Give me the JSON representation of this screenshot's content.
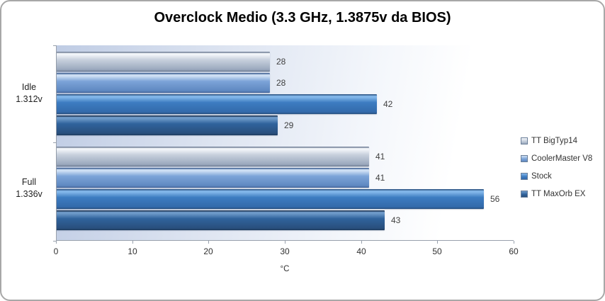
{
  "frame": {
    "background": "#ffffff",
    "border_color": "#a8a8a8"
  },
  "title": "Overclock Medio (3.3 GHz, 1.3875v da BIOS)",
  "chart_data": {
    "type": "bar",
    "orientation": "horizontal",
    "title": "Overclock Medio (3.3 GHz, 1.3875v da BIOS)",
    "xlabel": "°C",
    "xlim": [
      0,
      60
    ],
    "xticks": [
      0,
      10,
      20,
      30,
      40,
      50,
      60
    ],
    "grid": false,
    "data_labels": true,
    "legend_position": "right",
    "axis_color": "#98a0ac",
    "plot_background_gradient": [
      "#bfcce4",
      "#dde4f1",
      "#f3f6fb",
      "#ffffff"
    ],
    "categories": [
      {
        "line1": "Idle",
        "line2": "1.312v"
      },
      {
        "line1": "Full",
        "line2": "1.336v"
      }
    ],
    "series": [
      {
        "name": "TT BigTyp14",
        "values": [
          28,
          41
        ],
        "colors": {
          "edge": "#7d8aa0",
          "hi": "#f2f5f9",
          "mid": "#c6cfdc",
          "lo": "#9aa8bd",
          "dark": "#6e7c93"
        }
      },
      {
        "name": "CoolerMaster V8",
        "values": [
          28,
          41
        ],
        "colors": {
          "edge": "#4f6f9e",
          "hi": "#cfe0f4",
          "mid": "#7ca4d8",
          "lo": "#5f89c1",
          "dark": "#45659a"
        }
      },
      {
        "name": "Stock",
        "values": [
          42,
          56
        ],
        "colors": {
          "edge": "#38608f",
          "hi": "#83b7ea",
          "mid": "#3d7cc1",
          "lo": "#336aab",
          "dark": "#264e7e"
        }
      },
      {
        "name": "TT MaxOrb EX",
        "values": [
          29,
          43
        ],
        "colors": {
          "edge": "#263f5f",
          "hi": "#6f9bca",
          "mid": "#30639c",
          "lo": "#294f7d",
          "dark": "#1d3a5d"
        }
      }
    ]
  }
}
